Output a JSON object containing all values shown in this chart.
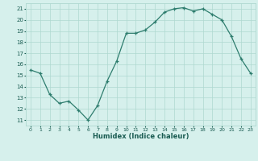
{
  "x": [
    0,
    1,
    2,
    3,
    4,
    5,
    6,
    7,
    8,
    9,
    10,
    11,
    12,
    13,
    14,
    15,
    16,
    17,
    18,
    19,
    20,
    21,
    22,
    23
  ],
  "y": [
    15.5,
    15.2,
    13.3,
    12.5,
    12.7,
    11.9,
    11.0,
    12.3,
    14.5,
    16.3,
    18.8,
    18.8,
    19.1,
    19.8,
    20.7,
    21.0,
    21.1,
    20.8,
    21.0,
    20.5,
    20.0,
    18.5,
    16.5,
    15.2
  ],
  "xlabel": "Humidex (Indice chaleur)",
  "ylabel_ticks": [
    11,
    12,
    13,
    14,
    15,
    16,
    17,
    18,
    19,
    20,
    21
  ],
  "ylim": [
    10.5,
    21.5
  ],
  "xlim": [
    -0.5,
    23.5
  ],
  "line_color": "#2e7d6e",
  "marker_color": "#2e7d6e",
  "bg_color": "#d6f0ec",
  "grid_color": "#aed8d0",
  "tick_label_color": "#1a5c52",
  "xlabel_color": "#1a5c52"
}
